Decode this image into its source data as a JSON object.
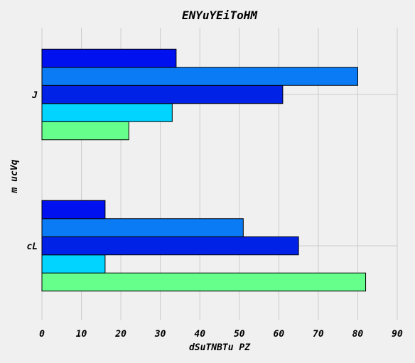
{
  "chart_data": {
    "type": "bar",
    "orientation": "horizontal",
    "title": "ENYuYEiToHM",
    "xlabel": "dSuTNBTu PZ",
    "ylabel": "m ucVq",
    "categories": [
      "J",
      "cL"
    ],
    "xlim": [
      0,
      90
    ],
    "xticks": [
      "0",
      "10",
      "20",
      "30",
      "40",
      "50",
      "60",
      "70",
      "80",
      "90"
    ],
    "grid": true,
    "series": [
      {
        "values": [
          22,
          82
        ],
        "color": "#66ff8c"
      },
      {
        "values": [
          33,
          16
        ],
        "color": "#00d4ff"
      },
      {
        "values": [
          61,
          65
        ],
        "color": "#0022e6"
      },
      {
        "values": [
          80,
          51
        ],
        "color": "#0a7af5"
      },
      {
        "values": [
          34,
          16
        ],
        "color": "#0011f0"
      }
    ]
  }
}
